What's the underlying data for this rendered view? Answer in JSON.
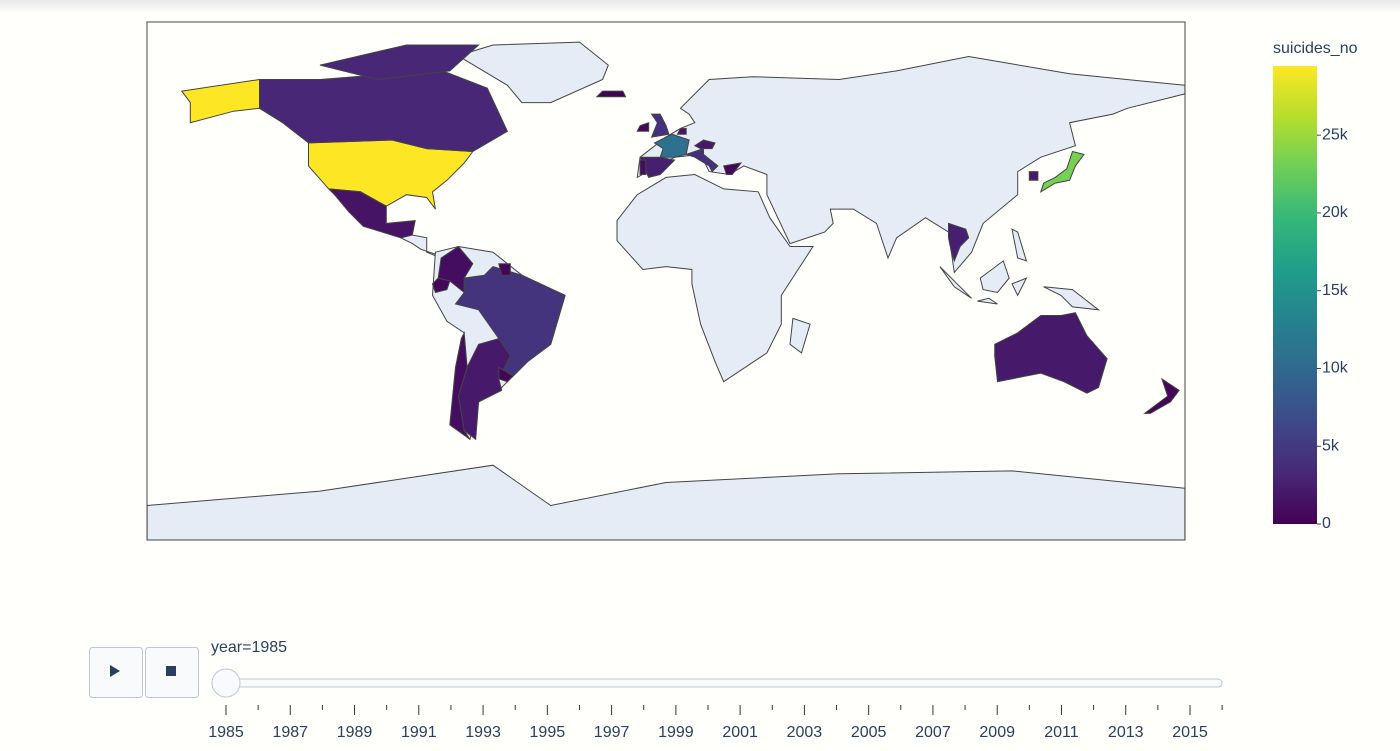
{
  "chart_data": {
    "type": "choropleth",
    "colorbar_title": "suicides_no",
    "values": [
      29446,
      29446,
      3200,
      3200,
      1500,
      1000,
      500,
      4500,
      2000,
      1000,
      300,
      400,
      11000,
      2500,
      1000,
      4000,
      500,
      4000,
      1500,
      2000,
      400,
      30,
      23257,
      2000,
      2500,
      2000,
      400
    ],
    "colorscale": [
      "#440154",
      "#482878",
      "#3e4989",
      "#31688e",
      "#26828e",
      "#1f9e89",
      "#35b779",
      "#6ece58",
      "#b5de2b",
      "#fde725"
    ],
    "clim": [
      0,
      29446
    ],
    "cticks": [
      0,
      {
        "value": 5000,
        "label": "5k"
      },
      {
        "value": 10000,
        "label": "10k"
      },
      {
        "value": 15000,
        "label": "15k"
      },
      {
        "value": 20000,
        "label": "20k"
      },
      {
        "value": 25000,
        "label": "25k"
      }
    ],
    "slider": {
      "current_label": "year=1985",
      "value": 1985,
      "steps": [
        1985,
        1986,
        1987,
        1988,
        1989,
        1990,
        1991,
        1992,
        1993,
        1994,
        1995,
        1996,
        1997,
        1998,
        1999,
        2000,
        2001,
        2002,
        2003,
        2004,
        2005,
        2006,
        2007,
        2008,
        2009,
        2010,
        2011,
        2012,
        2013,
        2014,
        2015,
        2016
      ]
    }
  }
}
